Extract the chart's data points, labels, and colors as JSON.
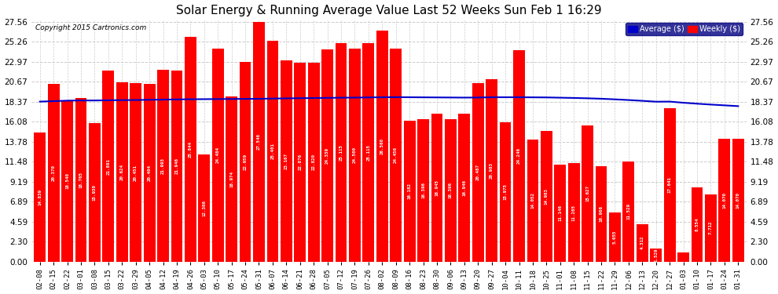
{
  "title": "Solar Energy & Running Average Value Last 52 Weeks Sun Feb 1 16:29",
  "copyright": "Copyright 2015 Cartronics.com",
  "bar_color": "#ff0000",
  "avg_line_color": "#0000cc",
  "background_color": "#ffffff",
  "grid_color": "#cccccc",
  "yticks": [
    0.0,
    2.3,
    4.59,
    6.89,
    9.19,
    11.48,
    13.78,
    16.08,
    18.37,
    20.67,
    22.97,
    25.26,
    27.56
  ],
  "legend_labels": [
    "Average ($)",
    "Weekly ($)"
  ],
  "legend_colors": [
    "#0000cc",
    "#ff0000"
  ],
  "legend_bg": "#000080",
  "categories": [
    "02-08",
    "02-15",
    "02-22",
    "03-01",
    "03-08",
    "03-15",
    "03-22",
    "03-29",
    "04-05",
    "04-12",
    "04-19",
    "04-26",
    "05-03",
    "05-10",
    "05-17",
    "05-24",
    "05-31",
    "06-07",
    "06-14",
    "06-21",
    "06-28",
    "07-05",
    "07-12",
    "07-19",
    "07-26",
    "08-02",
    "08-09",
    "08-16",
    "08-23",
    "08-30",
    "09-06",
    "09-13",
    "09-20",
    "09-27",
    "10-04",
    "10-11",
    "10-18",
    "10-25",
    "11-01",
    "11-08",
    "11-15",
    "11-22",
    "11-29",
    "12-06",
    "12-13",
    "12-20",
    "12-27",
    "01-03",
    "01-10",
    "01-17",
    "01-24",
    "01-31"
  ],
  "weekly_values": [
    14.839,
    20.37,
    18.54,
    18.765,
    15.93,
    21.891,
    20.624,
    20.451,
    20.404,
    21.993,
    21.946,
    25.844,
    12.306,
    24.484,
    18.974,
    22.959,
    27.546,
    25.401,
    23.107,
    22.876,
    22.82,
    24.339,
    25.115,
    24.5,
    25.115,
    26.56,
    24.456,
    16.182,
    16.396,
    16.945,
    16.396,
    16.946,
    20.487,
    20.983,
    15.975,
    24.246,
    14.052,
    14.983,
    11.146,
    11.265,
    15.627,
    10.966,
    5.655,
    11.529,
    4.312,
    1.529,
    17.641,
    1.006,
    8.554,
    7.712,
    14.07,
    14.07
  ],
  "avg_values": [
    18.37,
    18.42,
    18.48,
    18.5,
    18.5,
    18.52,
    18.54,
    18.55,
    18.58,
    18.6,
    18.62,
    18.64,
    18.65,
    18.66,
    18.67,
    18.68,
    18.69,
    18.72,
    18.74,
    18.76,
    18.78,
    18.8,
    18.82,
    18.83,
    18.85,
    18.87,
    18.88,
    18.87,
    18.86,
    18.85,
    18.84,
    18.83,
    18.84,
    18.87,
    18.87,
    18.87,
    18.86,
    18.85,
    18.82,
    18.79,
    18.75,
    18.7,
    18.63,
    18.55,
    18.46,
    18.36,
    18.37,
    18.24,
    18.13,
    18.03,
    17.94,
    17.85
  ]
}
